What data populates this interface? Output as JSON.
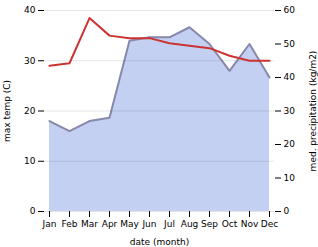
{
  "chart_data": {
    "type": "line",
    "categories": [
      "Jan",
      "Feb",
      "Mar",
      "Apr",
      "May",
      "Jun",
      "Jul",
      "Aug",
      "Sep",
      "Oct",
      "Nov",
      "Dec"
    ],
    "xlabel": "date (month)",
    "ylabel": "max temp (C)",
    "y2label": "med. precipitation (kg/m2)",
    "ylim": [
      0,
      40
    ],
    "yticks": [
      0,
      10,
      20,
      30,
      40
    ],
    "y2lim": [
      0,
      60
    ],
    "y2ticks": [
      0,
      10,
      20,
      30,
      40,
      50,
      60
    ],
    "grid": true,
    "series": [
      {
        "type": "area",
        "axis": "y2",
        "color": "#b8c8ee",
        "values": [
          27,
          24,
          27,
          28,
          51,
          52,
          52,
          55,
          50,
          42,
          50,
          40
        ]
      },
      {
        "type": "line",
        "axis": "y2",
        "color": "#8888aa",
        "values": [
          27,
          24,
          27,
          28,
          51,
          52,
          52,
          55,
          50,
          42,
          50,
          40
        ]
      },
      {
        "type": "line",
        "color": "#cc3333",
        "values": [
          29,
          29.5,
          38.5,
          35,
          34.5,
          34.5,
          33.5,
          33,
          32.5,
          31,
          30,
          30
        ]
      }
    ]
  }
}
